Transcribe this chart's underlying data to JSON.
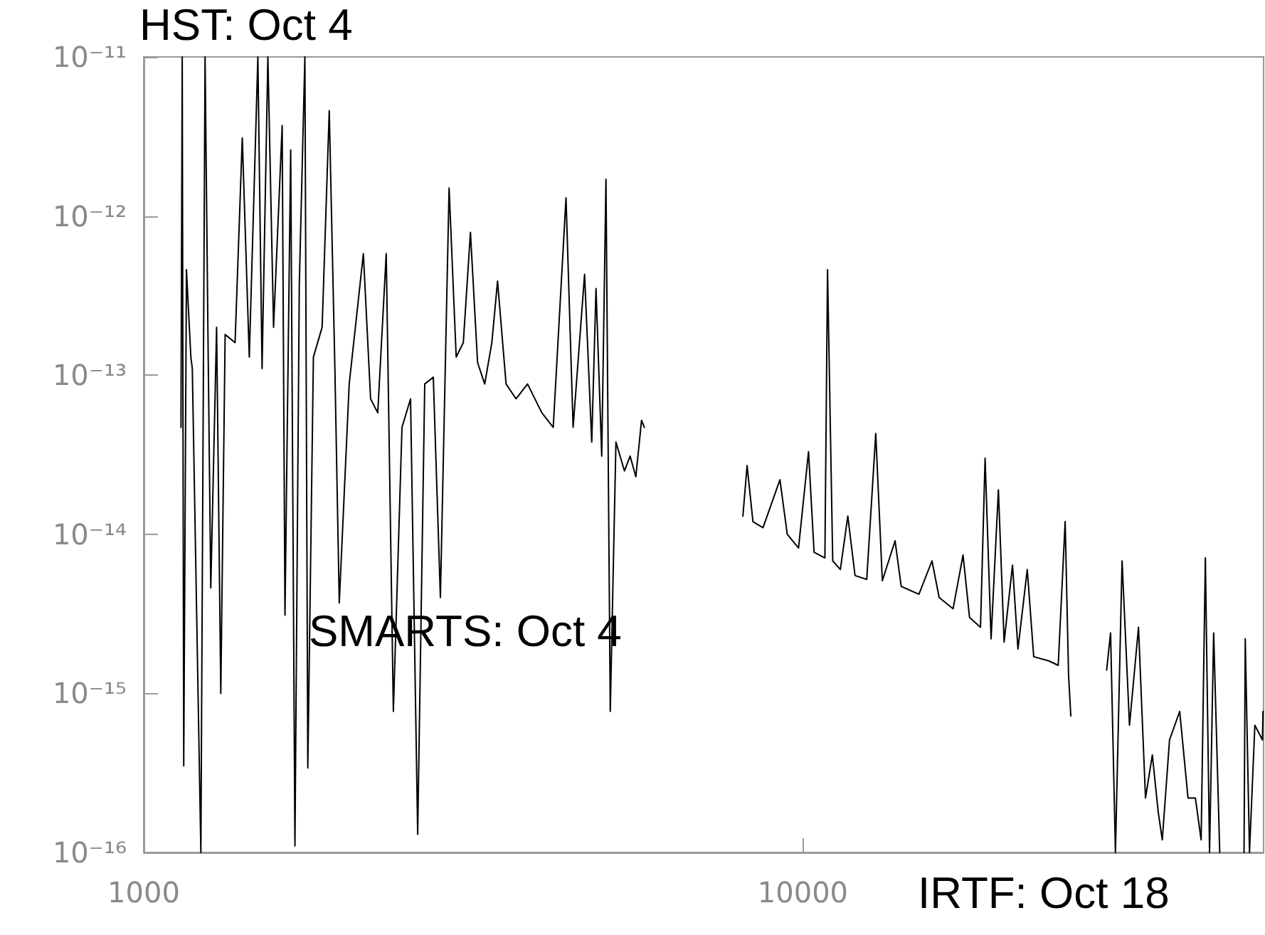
{
  "chart_data": {
    "type": "line",
    "log": "xy",
    "marker": "none",
    "line_style": "solid",
    "annotations": [
      "HST: Oct 4",
      "SMARTS: Oct 4",
      "IRTF: Oct 18"
    ],
    "xlim": [
      1000,
      50000
    ],
    "xticks": [
      1000,
      10000
    ],
    "ylim": [
      1e-16,
      1e-11
    ],
    "yticks": [
      {
        "value": 1e-16,
        "label": "10⁻¹⁶"
      },
      {
        "value": 1e-15,
        "label": "10⁻¹⁵"
      },
      {
        "value": 1e-14,
        "label": "10⁻¹⁴"
      },
      {
        "value": 1e-13,
        "label": "10⁻¹³"
      },
      {
        "value": 1e-12,
        "label": "10⁻¹²"
      },
      {
        "value": 1e-11,
        "label": "10⁻¹¹"
      }
    ],
    "series": [
      {
        "color": "#000000",
        "x": [
          1139,
          1144,
          1150,
          1161,
          1179,
          1185,
          1221,
          1239,
          1252,
          1264,
          1290,
          1309,
          1329,
          1376,
          1411,
          1446,
          1490,
          1512,
          1543,
          1574,
          1622,
          1638,
          1671,
          1696,
          1722,
          1756,
          1774,
          1809,
          1865,
          1912,
          1950,
          1980,
          2050,
          2154,
          2209,
          2265,
          2333,
          2392,
          2465,
          2540,
          2604,
          2669,
          2750,
          2819,
          2906,
          2979,
          3054,
          3131,
          3210,
          3291,
          3374,
          3442,
          3546,
          3672,
          3822,
          4018,
          4181,
          4372,
          4482,
          4665,
          4783,
          4855,
          4953,
          5027,
          5103,
          5205,
          5362,
          5470,
          5580,
          5692,
          5749
        ],
        "values": [
          4.7e-14,
          1e-11,
          3.5e-16,
          4.6e-13,
          1.3e-13,
          1.1e-13,
          1e-16,
          1e-11,
          1.6e-13,
          4.6e-15,
          2e-13,
          1e-15,
          1.8e-13,
          1.6e-13,
          3.1e-12,
          1.3e-13,
          1e-11,
          1.1e-13,
          1e-11,
          2e-13,
          3.7e-12,
          3.1e-15,
          2.6e-12,
          1.1e-16,
          3.7e-13,
          1e-11,
          3.4e-16,
          1.3e-13,
          2e-13,
          4.6e-12,
          1.1e-13,
          3.7e-15,
          8.8e-14,
          5.8e-13,
          7.1e-14,
          5.8e-14,
          5.8e-13,
          7.7e-16,
          4.7e-14,
          7.1e-14,
          1.3e-16,
          8.8e-14,
          9.7e-14,
          4e-15,
          1.5e-12,
          1.3e-13,
          1.6e-13,
          7.9e-13,
          1.2e-13,
          8.8e-14,
          1.6e-13,
          3.9e-13,
          8.8e-14,
          7.1e-14,
          8.8e-14,
          5.8e-14,
          4.7e-14,
          1.3e-12,
          4.7e-14,
          4.3e-13,
          3.8e-14,
          3.5e-13,
          3.1e-14,
          1.7e-12,
          7.7e-16,
          3.8e-14,
          2.5e-14,
          3.1e-14,
          2.3e-14,
          5.2e-14,
          4.7e-14
        ]
      },
      {
        "color": "#000000",
        "x": [
          8110,
          8230,
          8400,
          8700,
          9230,
          9470,
          9850,
          10200,
          10400,
          10800,
          10900,
          11100,
          11400,
          11700,
          12000,
          12500,
          12900,
          13200,
          13800,
          14100,
          15000,
          15700,
          16100,
          16900,
          17500,
          17900,
          18600,
          18900,
          19300,
          19800,
          20200,
          20800,
          21200,
          21900,
          22400,
          23600,
          24400,
          25000,
          25300,
          25500
        ],
        "values": [
          1.3e-14,
          2.7e-14,
          1.2e-14,
          1.1e-14,
          2.2e-14,
          1e-14,
          8.2e-15,
          3.3e-14,
          7.7e-15,
          7.1e-15,
          4.6e-13,
          6.8e-15,
          6e-15,
          1.3e-14,
          5.5e-15,
          5.2e-15,
          4.3e-14,
          5.1e-15,
          9.1e-15,
          4.7e-15,
          4.2e-15,
          6.8e-15,
          4e-15,
          3.4e-15,
          7.4e-15,
          3e-15,
          2.6e-15,
          3e-14,
          2.2e-15,
          1.9e-14,
          2.1e-15,
          6.4e-15,
          1.9e-15,
          6e-15,
          1.7e-15,
          1.6e-15,
          1.5e-15,
          1.2e-14,
          1.3e-15,
          7.2e-16
        ]
      },
      {
        "color": "#000000",
        "x": [
          28900,
          29300,
          29800,
          30500,
          31300,
          32300,
          33100,
          33900,
          34600,
          35100,
          36000,
          37300,
          38400,
          39400,
          40200,
          40800,
          41400,
          42000,
          42900,
          44500,
          46700,
          46900,
          47600,
          48500,
          49800,
          49900
        ],
        "values": [
          1.4e-15,
          2.4e-15,
          1e-16,
          6.8e-15,
          6.3e-16,
          2.6e-15,
          2.2e-16,
          4.1e-16,
          1.8e-16,
          1.2e-16,
          5.1e-16,
          7.7e-16,
          2.2e-16,
          2.2e-16,
          1.2e-16,
          7.1e-15,
          1e-16,
          2.4e-15,
          1e-16,
          null,
          1e-16,
          2.2e-15,
          1e-16,
          6.3e-16,
          5.1e-16,
          7.7e-16
        ]
      }
    ]
  }
}
